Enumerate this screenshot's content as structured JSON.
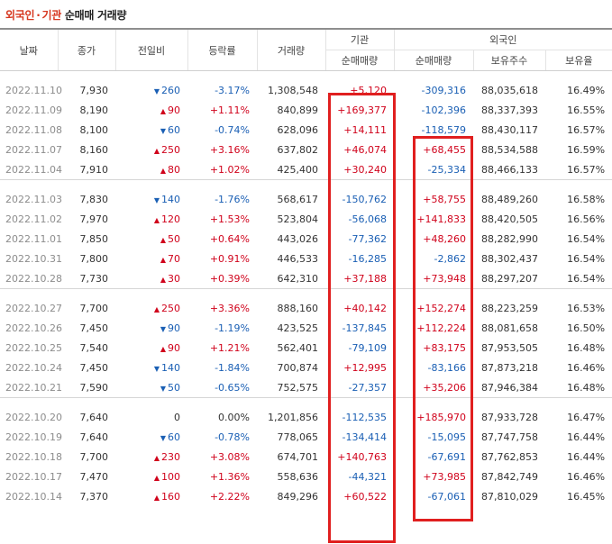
{
  "title": {
    "part1": "외국인",
    "sep": "·",
    "part2": "기관",
    "part3": "순매매 거래량"
  },
  "headers": {
    "date": "날짜",
    "close": "종가",
    "change": "전일비",
    "rate": "등락률",
    "volume": "거래량",
    "inst_group": "기관",
    "foreign_group": "외국인",
    "inst_net": "순매매량",
    "foreign_net": "순매매량",
    "foreign_hold": "보유주수",
    "foreign_ratio": "보유율"
  },
  "groups": [
    [
      {
        "date": "2022.11.10",
        "close": "7,930",
        "dir": "down",
        "chg": "260",
        "rate": "-3.17%",
        "vol": "1,308,548",
        "inst": "+5,120",
        "frgn": "-309,316",
        "hold": "88,035,618",
        "ratio": "16.49%"
      },
      {
        "date": "2022.11.09",
        "close": "8,190",
        "dir": "up",
        "chg": "90",
        "rate": "+1.11%",
        "vol": "840,899",
        "inst": "+169,377",
        "frgn": "-102,396",
        "hold": "88,337,393",
        "ratio": "16.55%"
      },
      {
        "date": "2022.11.08",
        "close": "8,100",
        "dir": "down",
        "chg": "60",
        "rate": "-0.74%",
        "vol": "628,096",
        "inst": "+14,111",
        "frgn": "-118,579",
        "hold": "88,430,117",
        "ratio": "16.57%"
      },
      {
        "date": "2022.11.07",
        "close": "8,160",
        "dir": "up",
        "chg": "250",
        "rate": "+3.16%",
        "vol": "637,802",
        "inst": "+46,074",
        "frgn": "+68,455",
        "hold": "88,534,588",
        "ratio": "16.59%"
      },
      {
        "date": "2022.11.04",
        "close": "7,910",
        "dir": "up",
        "chg": "80",
        "rate": "+1.02%",
        "vol": "425,400",
        "inst": "+30,240",
        "frgn": "-25,334",
        "hold": "88,466,133",
        "ratio": "16.57%"
      }
    ],
    [
      {
        "date": "2022.11.03",
        "close": "7,830",
        "dir": "down",
        "chg": "140",
        "rate": "-1.76%",
        "vol": "568,617",
        "inst": "-150,762",
        "frgn": "+58,755",
        "hold": "88,489,260",
        "ratio": "16.58%"
      },
      {
        "date": "2022.11.02",
        "close": "7,970",
        "dir": "up",
        "chg": "120",
        "rate": "+1.53%",
        "vol": "523,804",
        "inst": "-56,068",
        "frgn": "+141,833",
        "hold": "88,420,505",
        "ratio": "16.56%"
      },
      {
        "date": "2022.11.01",
        "close": "7,850",
        "dir": "up",
        "chg": "50",
        "rate": "+0.64%",
        "vol": "443,026",
        "inst": "-77,362",
        "frgn": "+48,260",
        "hold": "88,282,990",
        "ratio": "16.54%"
      },
      {
        "date": "2022.10.31",
        "close": "7,800",
        "dir": "up",
        "chg": "70",
        "rate": "+0.91%",
        "vol": "446,533",
        "inst": "-16,285",
        "frgn": "-2,862",
        "hold": "88,302,437",
        "ratio": "16.54%"
      },
      {
        "date": "2022.10.28",
        "close": "7,730",
        "dir": "up",
        "chg": "30",
        "rate": "+0.39%",
        "vol": "642,310",
        "inst": "+37,188",
        "frgn": "+73,948",
        "hold": "88,297,207",
        "ratio": "16.54%"
      }
    ],
    [
      {
        "date": "2022.10.27",
        "close": "7,700",
        "dir": "up",
        "chg": "250",
        "rate": "+3.36%",
        "vol": "888,160",
        "inst": "+40,142",
        "frgn": "+152,274",
        "hold": "88,223,259",
        "ratio": "16.53%"
      },
      {
        "date": "2022.10.26",
        "close": "7,450",
        "dir": "down",
        "chg": "90",
        "rate": "-1.19%",
        "vol": "423,525",
        "inst": "-137,845",
        "frgn": "+112,224",
        "hold": "88,081,658",
        "ratio": "16.50%"
      },
      {
        "date": "2022.10.25",
        "close": "7,540",
        "dir": "up",
        "chg": "90",
        "rate": "+1.21%",
        "vol": "562,401",
        "inst": "-79,109",
        "frgn": "+83,175",
        "hold": "87,953,505",
        "ratio": "16.48%"
      },
      {
        "date": "2022.10.24",
        "close": "7,450",
        "dir": "down",
        "chg": "140",
        "rate": "-1.84%",
        "vol": "700,874",
        "inst": "+12,995",
        "frgn": "-83,166",
        "hold": "87,873,218",
        "ratio": "16.46%"
      },
      {
        "date": "2022.10.21",
        "close": "7,590",
        "dir": "down",
        "chg": "50",
        "rate": "-0.65%",
        "vol": "752,575",
        "inst": "-27,357",
        "frgn": "+35,206",
        "hold": "87,946,384",
        "ratio": "16.48%"
      }
    ],
    [
      {
        "date": "2022.10.20",
        "close": "7,640",
        "dir": "flat",
        "chg": "0",
        "rate": "0.00%",
        "vol": "1,201,856",
        "inst": "-112,535",
        "frgn": "+185,970",
        "hold": "87,933,728",
        "ratio": "16.47%"
      },
      {
        "date": "2022.10.19",
        "close": "7,640",
        "dir": "down",
        "chg": "60",
        "rate": "-0.78%",
        "vol": "778,065",
        "inst": "-134,414",
        "frgn": "-15,095",
        "hold": "87,747,758",
        "ratio": "16.44%"
      },
      {
        "date": "2022.10.18",
        "close": "7,700",
        "dir": "up",
        "chg": "230",
        "rate": "+3.08%",
        "vol": "674,701",
        "inst": "+140,763",
        "frgn": "-67,691",
        "hold": "87,762,853",
        "ratio": "16.44%"
      },
      {
        "date": "2022.10.17",
        "close": "7,470",
        "dir": "up",
        "chg": "100",
        "rate": "+1.36%",
        "vol": "558,636",
        "inst": "-44,321",
        "frgn": "+73,985",
        "hold": "87,842,749",
        "ratio": "16.46%"
      },
      {
        "date": "2022.10.14",
        "close": "7,370",
        "dir": "up",
        "chg": "160",
        "rate": "+2.22%",
        "vol": "849,296",
        "inst": "+60,522",
        "frgn": "-67,061",
        "hold": "87,810,029",
        "ratio": "16.45%"
      }
    ]
  ],
  "colors": {
    "up": "#d0021b",
    "down": "#1a5fb4",
    "highlight": "#e01f1f",
    "title_accent": "#d6361e"
  },
  "icons": {
    "up": "triangle-up-icon",
    "down": "triangle-down-icon"
  }
}
